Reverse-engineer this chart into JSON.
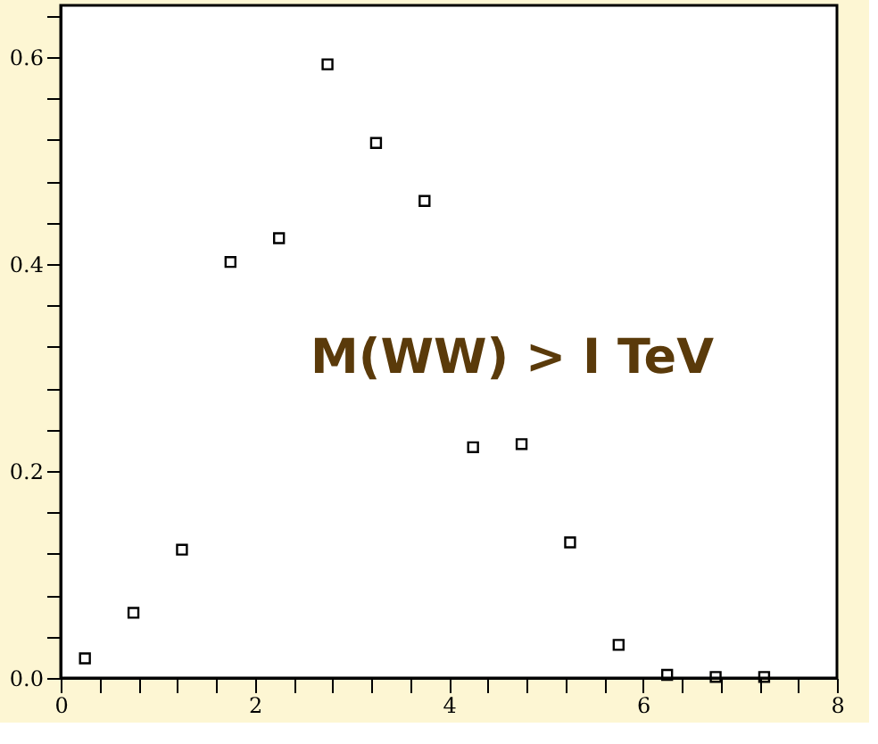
{
  "chart_data": {
    "type": "scatter",
    "x": [
      0.25,
      0.75,
      1.25,
      1.75,
      2.25,
      2.75,
      3.25,
      3.75,
      4.25,
      4.75,
      5.25,
      5.75,
      6.25,
      6.75,
      7.25
    ],
    "series": [
      {
        "color": "#000000",
        "values": [
          0.019,
          0.063,
          0.124,
          0.402,
          0.425,
          0.593,
          0.517,
          0.461,
          0.223,
          0.226,
          0.131,
          0.032,
          0.003,
          0.001,
          0.001
        ]
      }
    ],
    "xlim": [
      0,
      8
    ],
    "ylim": [
      0,
      0.65
    ],
    "xticks": [
      0,
      {
        "value": 0.4,
        "label": null
      },
      {
        "value": 0.8,
        "label": null
      },
      {
        "value": 1.2,
        "label": null
      },
      {
        "value": 1.6,
        "label": null
      },
      2,
      {
        "value": 2.4,
        "label": null
      },
      {
        "value": 2.8,
        "label": null
      },
      {
        "value": 3.2,
        "label": null
      },
      {
        "value": 3.6,
        "label": null
      },
      4,
      {
        "value": 4.4,
        "label": null
      },
      {
        "value": 4.8,
        "label": null
      },
      {
        "value": 5.2,
        "label": null
      },
      {
        "value": 5.6,
        "label": null
      },
      6,
      {
        "value": 6.4,
        "label": null
      },
      {
        "value": 6.8,
        "label": null
      },
      {
        "value": 7.2,
        "label": null
      },
      {
        "value": 7.6,
        "label": null
      },
      8
    ],
    "yticks": [
      {
        "value": 0,
        "label": "0.0"
      },
      {
        "value": 0.04,
        "label": null
      },
      {
        "value": 0.08,
        "label": null
      },
      {
        "value": 0.12,
        "label": null
      },
      {
        "value": 0.16,
        "label": null
      },
      0.2,
      {
        "value": 0.24,
        "label": null
      },
      {
        "value": 0.28,
        "label": null
      },
      {
        "value": 0.32,
        "label": null
      },
      {
        "value": 0.36,
        "label": null
      },
      0.4,
      {
        "value": 0.44,
        "label": null
      },
      {
        "value": 0.48,
        "label": null
      },
      {
        "value": 0.52,
        "label": null
      },
      {
        "value": 0.56,
        "label": null
      },
      0.6,
      {
        "value": 0.64,
        "label": null
      }
    ],
    "annotations": [
      "M(WW) > I TeV"
    ],
    "marker": "square",
    "grid": false
  }
}
